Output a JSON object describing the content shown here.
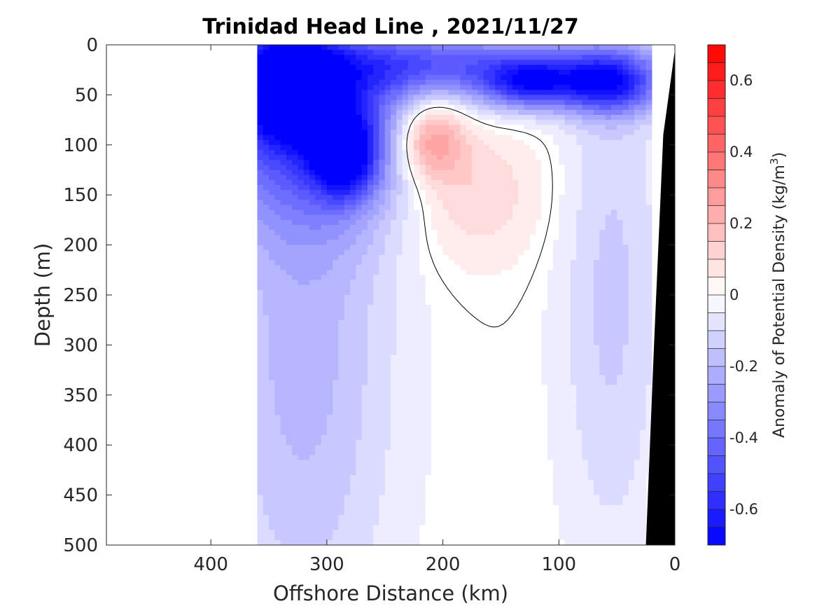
{
  "chart_data": {
    "type": "heatmap",
    "subtype": "filled contour section",
    "title": "Trinidad Head Line , 2021/11/27",
    "xlabel": "Offshore Distance (km)",
    "ylabel": "Depth (m)",
    "colorbar_label": "Anomaly of Potential Density (kg/m",
    "colorbar_label_superscript": "3",
    "colorbar_label_close": ")",
    "xlim": [
      490,
      0
    ],
    "ylim": [
      500,
      0
    ],
    "x_reversed": true,
    "y_reversed": true,
    "x_ticks": [
      400,
      300,
      200,
      100,
      0
    ],
    "x_tick_labels": [
      "400",
      "300",
      "200",
      "100",
      "0"
    ],
    "y_ticks": [
      0,
      50,
      100,
      150,
      200,
      250,
      300,
      350,
      400,
      450,
      500
    ],
    "y_tick_labels": [
      "0",
      "50",
      "100",
      "150",
      "200",
      "250",
      "300",
      "350",
      "400",
      "450",
      "500"
    ],
    "clim": [
      -0.7,
      0.7
    ],
    "contour_step": 0.05,
    "colorbar_ticks": [
      0.6,
      0.4,
      0.2,
      0,
      -0.2,
      -0.4,
      -0.6
    ],
    "colorbar_tick_labels": [
      "0.6",
      "0.4",
      "0.2",
      "0",
      "-0.2",
      "-0.4",
      "-0.6"
    ],
    "colormap": {
      "negative": "#0000ff",
      "zero": "#ffffff",
      "positive": "#ff0000"
    },
    "contour_line_level": 0,
    "data_extent_x": [
      360,
      20
    ],
    "bathymetry_color": "#000000",
    "bathymetry": [
      {
        "x": 0,
        "depth": 5
      },
      {
        "x": 10,
        "depth": 90
      },
      {
        "x": 18,
        "depth": 300
      },
      {
        "x": 25,
        "depth": 500
      }
    ],
    "anomaly_features": [
      {
        "name": "surface low west",
        "x": 335,
        "depth": 40,
        "value": -0.62,
        "sx": 30,
        "sy": 35
      },
      {
        "name": "subsurface low west",
        "x": 285,
        "depth": 110,
        "value": -0.5,
        "sx": 18,
        "sy": 28
      },
      {
        "name": "upper low band",
        "x": 300,
        "depth": 80,
        "value": -0.45,
        "sx": 80,
        "sy": 70
      },
      {
        "name": "surface low central",
        "x": 125,
        "depth": 40,
        "value": -0.45,
        "sx": 30,
        "sy": 18
      },
      {
        "name": "surface low east",
        "x": 55,
        "depth": 40,
        "value": -0.5,
        "sx": 30,
        "sy": 22
      },
      {
        "name": "surface low band",
        "x": 180,
        "depth": 20,
        "value": -0.35,
        "sx": 110,
        "sy": 22
      },
      {
        "name": "high core",
        "x": 212,
        "depth": 92,
        "value": 0.36,
        "sx": 22,
        "sy": 30
      },
      {
        "name": "high body",
        "x": 185,
        "depth": 135,
        "value": 0.2,
        "sx": 48,
        "sy": 55
      },
      {
        "name": "west column low",
        "x": 320,
        "depth": 300,
        "value": -0.2,
        "sx": 55,
        "sy": 220
      },
      {
        "name": "east column low",
        "x": 55,
        "depth": 250,
        "value": -0.14,
        "sx": 32,
        "sy": 190
      }
    ]
  }
}
